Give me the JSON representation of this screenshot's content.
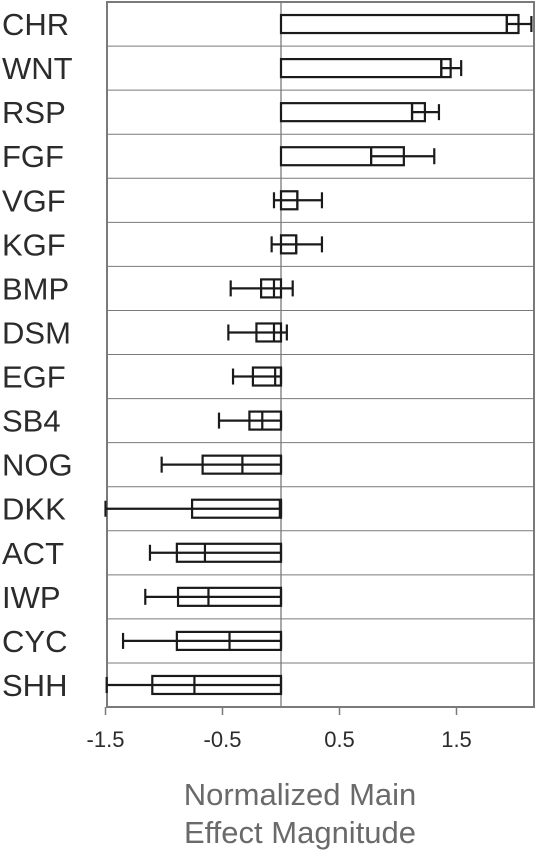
{
  "chart_data": {
    "type": "bar",
    "orientation": "horizontal",
    "categories": [
      "CHR",
      "WNT",
      "RSP",
      "FGF",
      "VGF",
      "KGF",
      "BMP",
      "DSM",
      "EGF",
      "SB4",
      "NOG",
      "DKK",
      "ACT",
      "IWP",
      "CYC",
      "SHH"
    ],
    "values": [
      2.03,
      1.45,
      1.23,
      1.05,
      0.14,
      0.13,
      -0.17,
      -0.21,
      -0.24,
      -0.27,
      -0.67,
      -0.76,
      -0.89,
      -0.88,
      -0.89,
      -1.1
    ],
    "inner_values": [
      1.93,
      1.37,
      1.12,
      0.77,
      0.14,
      0.13,
      -0.06,
      -0.06,
      -0.05,
      -0.16,
      -0.33,
      -0.01,
      -0.65,
      -0.62,
      -0.44,
      -0.74
    ],
    "error_low": [
      1.93,
      1.37,
      1.12,
      0.77,
      -0.06,
      -0.08,
      -0.43,
      -0.45,
      -0.41,
      -0.53,
      -1.02,
      -1.5,
      -1.12,
      -1.16,
      -1.35,
      -1.49
    ],
    "error_high": [
      2.14,
      1.54,
      1.35,
      1.31,
      0.35,
      0.35,
      0.1,
      0.05,
      0.0,
      0.0,
      0.0,
      0.0,
      0.0,
      0.0,
      0.0,
      0.0
    ],
    "xticks": [
      "-1.5",
      "-0.5",
      "0.5",
      "1.5"
    ],
    "xtick_values": [
      -1.5,
      -0.5,
      0.5,
      1.5
    ],
    "xlim": [
      -1.5,
      2.2
    ],
    "xlabel_line1": "Normalized Main",
    "xlabel_line2": "Effect Magnitude",
    "grid": "horizontal row dividers",
    "colors": {
      "bar_stroke": "#1a1a1a",
      "frame": "#7a7a7a",
      "grid": "#7a7a7a",
      "text": "#2b2b2b",
      "xlabel": "#6a6a6a",
      "background": "#ffffff"
    }
  }
}
